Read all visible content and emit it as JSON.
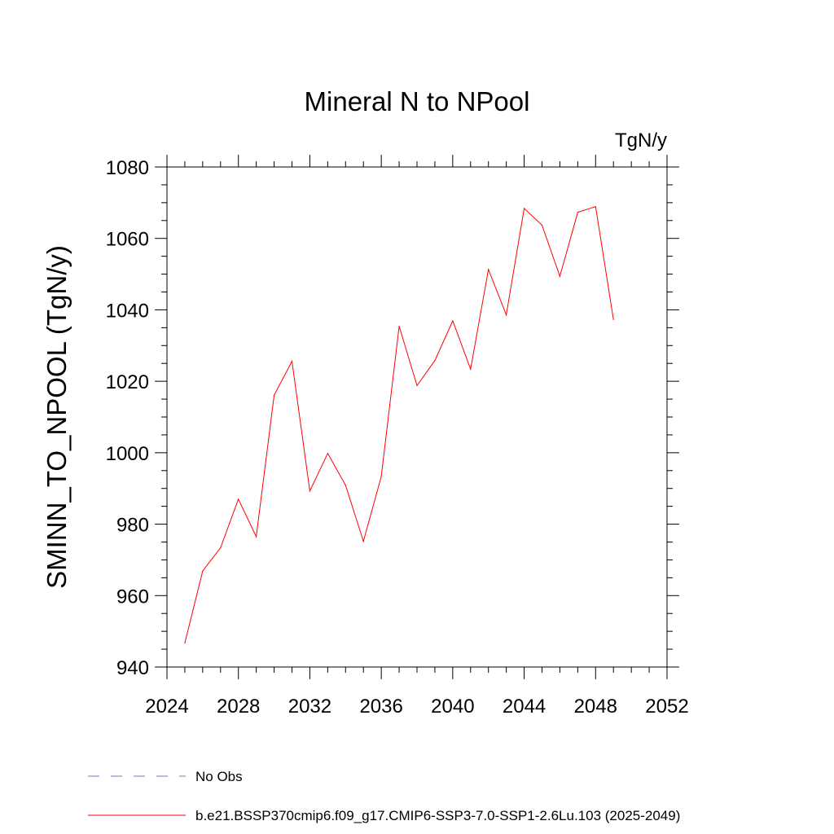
{
  "chart_data": {
    "type": "line",
    "title": "Mineral N to NPool",
    "units": "TgN/y",
    "ylabel": "SMINN_TO_NPOOL  (TgN/y)",
    "xlabel": "",
    "xlim": [
      2024,
      2052
    ],
    "ylim": [
      940,
      1080
    ],
    "x_ticks": [
      2024,
      2028,
      2032,
      2036,
      2040,
      2044,
      2048,
      2052
    ],
    "y_ticks": [
      940,
      960,
      980,
      1000,
      1020,
      1040,
      1060,
      1080
    ],
    "x_tick_labels": [
      "2024",
      "2028",
      "2032",
      "2036",
      "2040",
      "2044",
      "2048",
      "2052"
    ],
    "y_tick_labels": [
      "940",
      "960",
      "980",
      "1000",
      "1020",
      "1040",
      "1060",
      "1080"
    ],
    "grid": false,
    "legend_placement": "bottom-left",
    "series": [
      {
        "name": "b.e21.BSSP370cmip6.f09_g17.CMIP6-SSP3-7.0-SSP1-2.6Lu.103 (2025-2049)",
        "color": "#ff0000",
        "x": [
          2025,
          2026,
          2027,
          2028,
          2029,
          2030,
          2031,
          2032,
          2033,
          2034,
          2035,
          2036,
          2037,
          2038,
          2039,
          2040,
          2041,
          2042,
          2043,
          2044,
          2045,
          2046,
          2047,
          2048,
          2049
        ],
        "values": [
          946.7,
          966.9,
          973.4,
          987.0,
          976.5,
          1016.1,
          1025.6,
          989.3,
          999.8,
          990.9,
          975.2,
          993.3,
          1035.4,
          1018.8,
          1025.8,
          1036.9,
          1023.4,
          1051.3,
          1038.6,
          1068.4,
          1063.7,
          1049.4,
          1067.3,
          1068.9,
          1037.3
        ]
      }
    ],
    "legend": [
      {
        "label": "No Obs",
        "color": "#7b6fc6",
        "style": "dashed"
      },
      {
        "label": "b.e21.BSSP370cmip6.f09_g17.CMIP6-SSP3-7.0-SSP1-2.6Lu.103 (2025-2049)",
        "color": "#ff0000",
        "style": "solid"
      }
    ]
  }
}
